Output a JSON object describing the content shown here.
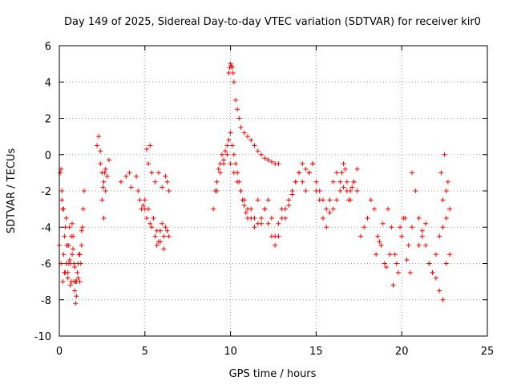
{
  "chart_data": {
    "type": "scatter",
    "title": "Day 149 of 2025, Sidereal Day-to-day VTEC variation (SDTVAR) for receiver kir0",
    "xlabel": "GPS time / hours",
    "ylabel": "SDTVAR / TECUs",
    "xlim": [
      0,
      25
    ],
    "ylim": [
      -10,
      6
    ],
    "xticks": [
      0,
      5,
      10,
      15,
      20,
      25
    ],
    "xtick_labels": [
      "0",
      "5",
      "10",
      "15",
      "20",
      "25"
    ],
    "yticks": [
      -10,
      -8,
      -6,
      -4,
      -2,
      0,
      2,
      4,
      6
    ],
    "ytick_labels": [
      "-10",
      "-8",
      "-6",
      "-4",
      "-2",
      "0",
      "2",
      "4",
      "6"
    ],
    "grid": true,
    "marker": "plus",
    "color": "#ff0000",
    "series": [
      {
        "name": "SDTVAR",
        "x": [
          0.0,
          0.05,
          0.1,
          0.15,
          0.2,
          0.25,
          0.3,
          0.35,
          0.4,
          0.45,
          0.5,
          0.55,
          0.6,
          0.65,
          0.7,
          0.75,
          0.8,
          0.85,
          0.9,
          0.95,
          1.0,
          1.05,
          1.1,
          1.15,
          1.2,
          1.25,
          1.3,
          1.35,
          1.4,
          1.45,
          0.1,
          0.2,
          0.3,
          0.4,
          0.5,
          0.6,
          0.7,
          0.8,
          0.9,
          1.0,
          1.1,
          1.2,
          1.3,
          0.15,
          0.25,
          0.35,
          0.45,
          0.55,
          0.65,
          0.75,
          0.85,
          0.95,
          2.2,
          2.3,
          2.4,
          2.5,
          2.6,
          2.7,
          2.8,
          2.9,
          2.5,
          2.6,
          2.7,
          2.4,
          2.55,
          2.65,
          3.6,
          3.9,
          4.1,
          4.2,
          4.5,
          4.6,
          4.7,
          4.8,
          4.9,
          5.0,
          5.1,
          5.2,
          5.3,
          5.4,
          5.5,
          5.6,
          5.7,
          5.8,
          5.9,
          6.0,
          6.1,
          6.2,
          6.3,
          6.4,
          5.0,
          5.2,
          5.4,
          5.6,
          5.8,
          6.0,
          6.2,
          6.4,
          5.1,
          5.3,
          5.5,
          5.7,
          5.9,
          6.1,
          6.3,
          9.0,
          9.1,
          9.2,
          9.3,
          9.4,
          9.5,
          9.6,
          9.7,
          9.8,
          9.9,
          10.0,
          10.1,
          10.2,
          10.3,
          10.4,
          10.5,
          10.6,
          10.7,
          10.8,
          10.9,
          11.0,
          11.2,
          11.4,
          11.6,
          11.8,
          12.0,
          12.2,
          12.4,
          12.6,
          12.8,
          13.0,
          13.2,
          13.4,
          13.6,
          13.8,
          14.0,
          14.2,
          14.4,
          14.6,
          14.8,
          15.0,
          15.2,
          15.4,
          15.6,
          15.8,
          16.0,
          16.2,
          16.4,
          16.6,
          16.8,
          17.0,
          17.2,
          17.4,
          9.9,
          9.95,
          10.0,
          10.05,
          10.1,
          10.15,
          10.2,
          10.3,
          10.4,
          10.5,
          10.6,
          10.8,
          11.0,
          11.2,
          11.4,
          11.6,
          11.8,
          12.0,
          12.2,
          12.4,
          12.6,
          12.8,
          9.2,
          9.4,
          9.6,
          9.8,
          10.0,
          10.2,
          10.4,
          10.6,
          10.8,
          11.0,
          11.2,
          11.4,
          11.6,
          11.8,
          12.0,
          12.2,
          12.4,
          12.6,
          12.8,
          13.0,
          13.2,
          13.4,
          13.6,
          13.8,
          14.0,
          14.2,
          14.4,
          14.6,
          14.8,
          15.0,
          15.2,
          15.4,
          15.6,
          15.8,
          16.0,
          16.2,
          16.4,
          16.6,
          16.8,
          17.0,
          17.2,
          17.4,
          16.5,
          16.7,
          16.9,
          17.1,
          17.6,
          17.8,
          18.0,
          18.2,
          18.4,
          18.6,
          18.8,
          19.0,
          19.2,
          19.4,
          19.6,
          19.8,
          20.0,
          20.2,
          20.4,
          20.6,
          18.5,
          18.7,
          18.9,
          19.1,
          19.3,
          19.5,
          19.7,
          19.9,
          20.1,
          20.3,
          20.5,
          20.6,
          20.8,
          21.0,
          21.2,
          21.4,
          21.6,
          21.8,
          22.0,
          22.2,
          22.4,
          22.6,
          22.8,
          21.0,
          21.2,
          21.4,
          21.6,
          21.8,
          22.0,
          22.2,
          22.4,
          22.6,
          22.8,
          22.3,
          22.5,
          22.7,
          22.4,
          22.6
        ],
        "y": [
          -5.0,
          -1.0,
          -0.8,
          -2.0,
          -3.0,
          -5.5,
          -6.5,
          -4.0,
          -6.0,
          -5.0,
          -6.5,
          -5.0,
          -4.0,
          -6.0,
          -7.0,
          -5.5,
          -4.5,
          -7.0,
          -7.5,
          -8.2,
          -7.0,
          -6.5,
          -6.0,
          -5.5,
          -7.0,
          -6.0,
          -5.0,
          -4.0,
          -3.0,
          -2.0,
          -6.0,
          -7.0,
          -4.5,
          -3.5,
          -6.8,
          -5.8,
          -4.5,
          -5.2,
          -6.2,
          -7.8,
          -6.8,
          -5.5,
          -4.2,
          -2.5,
          -3.0,
          -6.5,
          -5.0,
          -6.0,
          -7.2,
          -3.8,
          -6.0,
          -7.0,
          0.5,
          1.0,
          -0.5,
          -1.0,
          -1.5,
          -0.8,
          -1.2,
          -0.3,
          -2.5,
          -3.5,
          -2.0,
          0.2,
          -1.8,
          -1.0,
          -1.5,
          -1.2,
          -1.0,
          -1.8,
          -1.2,
          -2.0,
          -2.5,
          -3.0,
          -2.8,
          -2.5,
          -3.5,
          -3.0,
          -3.8,
          -4.0,
          -3.5,
          -4.5,
          -5.0,
          -4.8,
          -4.2,
          -3.8,
          -4.5,
          -4.0,
          -4.2,
          -4.5,
          -3.0,
          -0.5,
          -1.0,
          -1.5,
          -1.0,
          -1.8,
          -1.2,
          -2.0,
          0.3,
          0.5,
          -3.5,
          -4.2,
          -4.8,
          -5.2,
          -1.5,
          -3.0,
          -2.0,
          -1.5,
          -0.8,
          -0.5,
          0.0,
          -0.3,
          0.2,
          0.5,
          0.8,
          1.2,
          0.5,
          0.0,
          -0.5,
          -1.0,
          -1.5,
          -2.0,
          -2.5,
          -2.8,
          -3.2,
          -3.5,
          -3.0,
          -3.5,
          -2.5,
          -3.8,
          -3.0,
          -2.5,
          -3.5,
          -4.5,
          -3.8,
          -3.0,
          -3.5,
          -2.8,
          -2.2,
          -1.5,
          -1.0,
          -1.5,
          -2.0,
          -1.0,
          -0.5,
          -2.0,
          -2.5,
          -3.5,
          -4.0,
          -3.2,
          -3.0,
          -2.5,
          -2.0,
          -1.8,
          -1.5,
          -2.0,
          -1.5,
          -0.8,
          4.5,
          4.8,
          5.0,
          4.9,
          4.8,
          4.5,
          4.0,
          3.0,
          2.5,
          2.0,
          1.5,
          1.2,
          1.0,
          0.8,
          0.5,
          0.2,
          0.0,
          -0.2,
          -0.3,
          -0.4,
          -0.5,
          -0.5,
          -2.0,
          -1.0,
          -0.5,
          0.0,
          -0.5,
          -1.0,
          -1.5,
          -2.0,
          -2.5,
          -3.0,
          -3.5,
          -4.0,
          -3.8,
          -3.5,
          -3.0,
          -3.8,
          -4.5,
          -5.0,
          -4.5,
          -3.5,
          -3.0,
          -2.5,
          -2.0,
          -1.5,
          -1.0,
          -0.5,
          -0.8,
          -1.0,
          -0.5,
          -1.5,
          -2.0,
          -2.5,
          -3.0,
          -2.5,
          -1.5,
          -1.0,
          -1.5,
          -0.5,
          -2.0,
          -2.5,
          -1.5,
          -2.0,
          -1.0,
          -0.8,
          -2.5,
          -1.8,
          -4.5,
          -4.0,
          -3.5,
          -2.5,
          -3.0,
          -4.5,
          -5.0,
          -6.0,
          -3.0,
          -4.0,
          -5.5,
          -6.5,
          -4.5,
          -3.5,
          -5.0,
          -4.0,
          -5.5,
          -4.8,
          -3.8,
          -6.2,
          -5.5,
          -7.2,
          -6.0,
          -4.0,
          -3.5,
          -5.8,
          -6.5,
          -1.0,
          -2.0,
          -3.5,
          -4.5,
          -5.0,
          -6.0,
          -6.5,
          -6.8,
          -7.5,
          -8.0,
          -6.0,
          -5.5,
          -5.0,
          -4.2,
          -3.8,
          -6.0,
          -6.5,
          -5.5,
          -4.5,
          -4.0,
          -3.5,
          -3.0,
          -1.0,
          0.0,
          -1.5,
          -2.5,
          -2.0
        ]
      }
    ]
  }
}
